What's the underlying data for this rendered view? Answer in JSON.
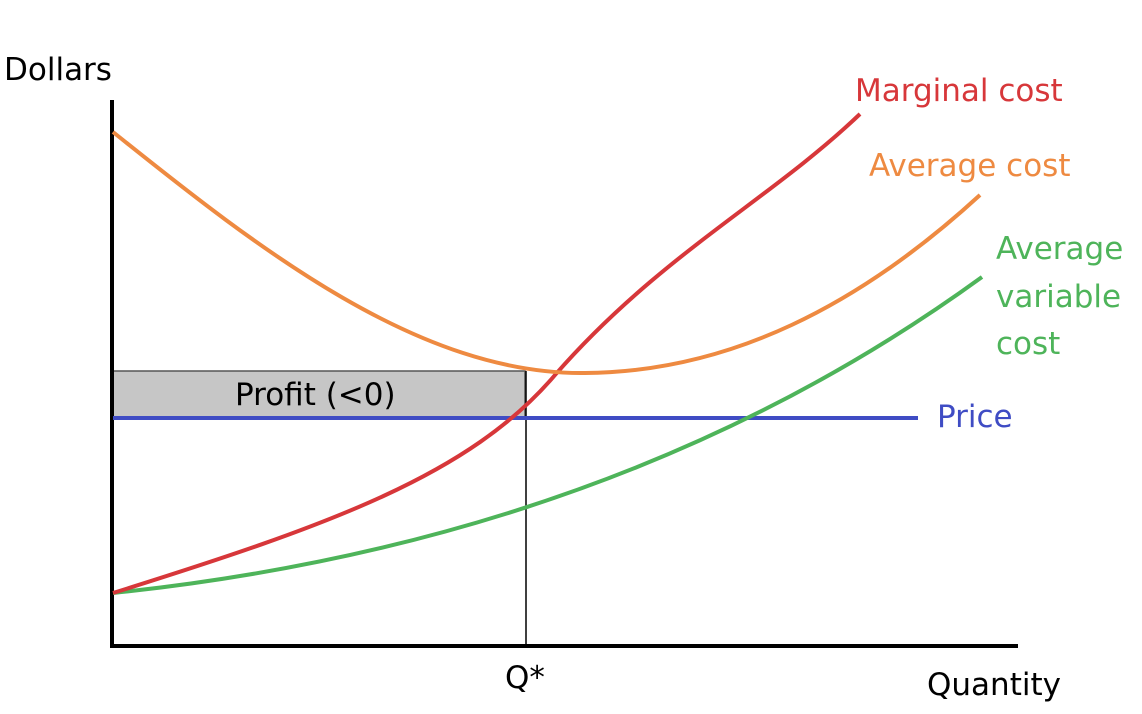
{
  "axes": {
    "ylabel": "Dollars",
    "xlabel": "Quantity",
    "x_tick": "Q*"
  },
  "curves": {
    "marginal_cost": {
      "label": "Marginal cost",
      "color": "#d7373a"
    },
    "average_cost": {
      "label": "Average cost",
      "color": "#ee8a41"
    },
    "average_variable_cost": {
      "label_lines": [
        "Average",
        "variable",
        "cost"
      ],
      "color": "#4eb45a"
    },
    "price": {
      "label": "Price",
      "color": "#3f4cc4"
    }
  },
  "profit_area": {
    "label": "Profit (<0)",
    "fill": "#c6c6c6"
  },
  "colors": {
    "axis": "#000000"
  }
}
